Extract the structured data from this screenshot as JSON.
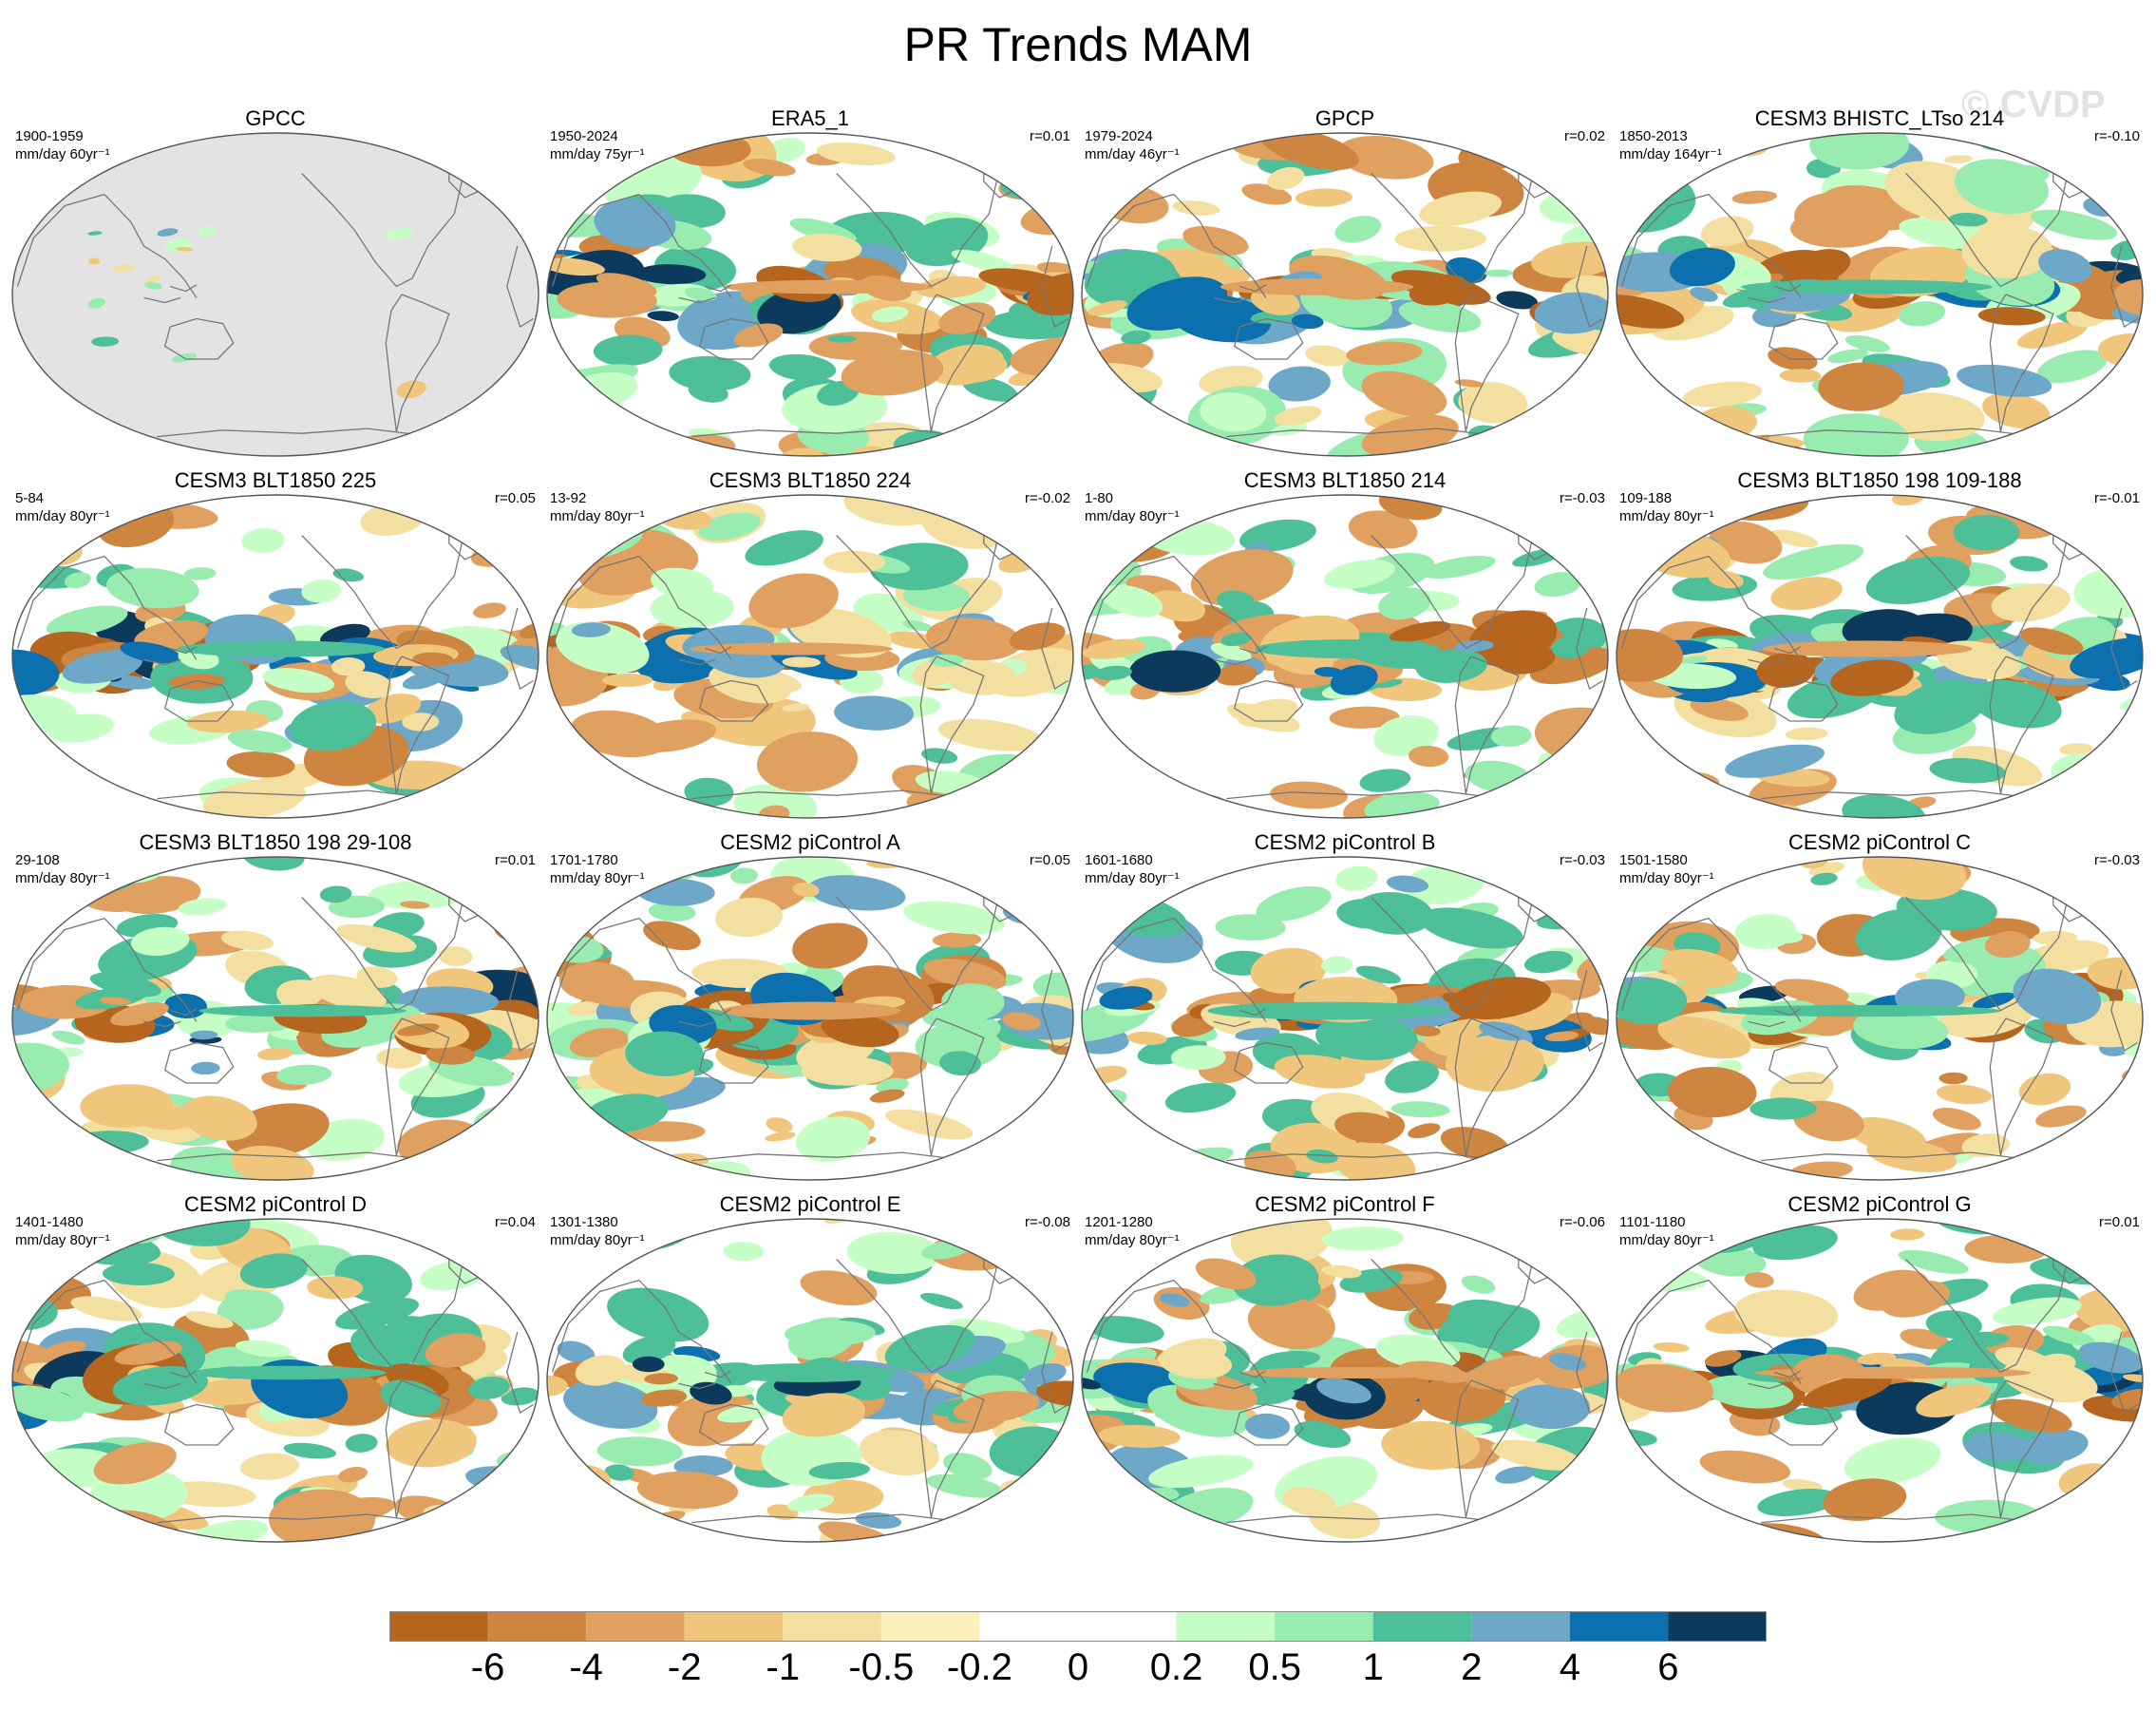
{
  "title": "PR Trends MAM",
  "watermark": "© CVDP",
  "panels": [
    {
      "title": "GPCC",
      "period": "1900-1959",
      "units": "mm/day 60yr⁻¹",
      "r": "",
      "masked": true,
      "seed": 3
    },
    {
      "title": "ERA5_1",
      "period": "1950-2024",
      "units": "mm/day 75yr⁻¹",
      "r": "r=0.01",
      "masked": false,
      "seed": 11
    },
    {
      "title": "GPCP",
      "period": "1979-2024",
      "units": "mm/day 46yr⁻¹",
      "r": "r=0.02",
      "masked": false,
      "seed": 17
    },
    {
      "title": "CESM3 BHISTC_LTso 214",
      "period": "1850-2013",
      "units": "mm/day 164yr⁻¹",
      "r": "r=-0.10",
      "masked": false,
      "seed": 23
    },
    {
      "title": "CESM3 BLT1850 225",
      "period": "5-84",
      "units": "mm/day 80yr⁻¹",
      "r": "r=0.05",
      "masked": false,
      "seed": 29
    },
    {
      "title": "CESM3 BLT1850 224",
      "period": "13-92",
      "units": "mm/day 80yr⁻¹",
      "r": "r=-0.02",
      "masked": false,
      "seed": 31
    },
    {
      "title": "CESM3 BLT1850 214",
      "period": "1-80",
      "units": "mm/day 80yr⁻¹",
      "r": "r=-0.03",
      "masked": false,
      "seed": 37
    },
    {
      "title": "CESM3 BLT1850 198 109-188",
      "period": "109-188",
      "units": "mm/day 80yr⁻¹",
      "r": "r=-0.01",
      "masked": false,
      "seed": 41
    },
    {
      "title": "CESM3 BLT1850 198 29-108",
      "period": "29-108",
      "units": "mm/day 80yr⁻¹",
      "r": "r=0.01",
      "masked": false,
      "seed": 43
    },
    {
      "title": "CESM2 piControl A",
      "period": "1701-1780",
      "units": "mm/day 80yr⁻¹",
      "r": "r=0.05",
      "masked": false,
      "seed": 47
    },
    {
      "title": "CESM2 piControl B",
      "period": "1601-1680",
      "units": "mm/day 80yr⁻¹",
      "r": "r=-0.03",
      "masked": false,
      "seed": 53
    },
    {
      "title": "CESM2 piControl C",
      "period": "1501-1580",
      "units": "mm/day 80yr⁻¹",
      "r": "r=-0.03",
      "masked": false,
      "seed": 59
    },
    {
      "title": "CESM2 piControl D",
      "period": "1401-1480",
      "units": "mm/day 80yr⁻¹",
      "r": "r=0.04",
      "masked": false,
      "seed": 61
    },
    {
      "title": "CESM2 piControl E",
      "period": "1301-1380",
      "units": "mm/day 80yr⁻¹",
      "r": "r=-0.08",
      "masked": false,
      "seed": 67
    },
    {
      "title": "CESM2 piControl F",
      "period": "1201-1280",
      "units": "mm/day 80yr⁻¹",
      "r": "r=-0.06",
      "masked": false,
      "seed": 71
    },
    {
      "title": "CESM2 piControl G",
      "period": "1101-1180",
      "units": "mm/day 80yr⁻¹",
      "r": "r=0.01",
      "masked": false,
      "seed": 73
    }
  ],
  "colorbar": {
    "colors": [
      "#b5651d",
      "#cd853f",
      "#dfa060",
      "#f0c67c",
      "#f3dfa0",
      "#fbf0bb",
      "#ffffff",
      "#ffffff",
      "#c6ffc6",
      "#98ecb0",
      "#4dbf99",
      "#6da8c8",
      "#0c6fae",
      "#0b3a5c"
    ],
    "labels": [
      "-6",
      "-4",
      "-2",
      "-1",
      "-0.5",
      "-0.2",
      "0",
      "0.2",
      "0.5",
      "1",
      "2",
      "4",
      "6"
    ]
  },
  "colors": {
    "mask": "#e3e3e3",
    "coast": "#777777",
    "border": "#555555"
  }
}
